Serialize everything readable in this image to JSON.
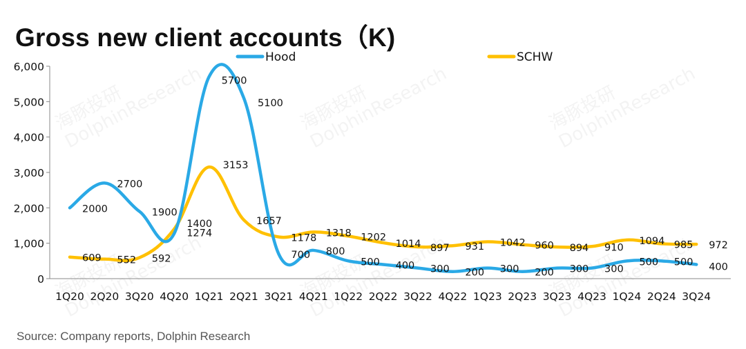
{
  "title": "Gross new client accounts（K)",
  "source": "Source: Company reports, Dolphin Research",
  "watermark": {
    "text_cn": "海豚投研",
    "text_en": "DolphinResearch"
  },
  "colors": {
    "hood": "#2AA9E6",
    "schw": "#FFC000",
    "axis": "#888888"
  },
  "chart_data": {
    "type": "line",
    "title": "Gross new client accounts（K)",
    "categories": [
      "1Q20",
      "2Q20",
      "3Q20",
      "4Q20",
      "1Q21",
      "2Q21",
      "3Q21",
      "4Q21",
      "1Q22",
      "2Q22",
      "3Q22",
      "4Q22",
      "1Q23",
      "2Q23",
      "3Q23",
      "4Q23",
      "1Q24",
      "2Q24",
      "3Q24"
    ],
    "series": [
      {
        "name": "Hood",
        "color": "#2AA9E6",
        "values": [
          2000,
          2700,
          1900,
          1274,
          5700,
          5100,
          700,
          800,
          500,
          400,
          300,
          200,
          300,
          200,
          300,
          300,
          500,
          500,
          400
        ],
        "labels": [
          "2000",
          "2700",
          "1900",
          "1274",
          "5700",
          "5100",
          "700",
          "800",
          "500",
          "400",
          "300",
          "200",
          "300",
          "200",
          "300",
          "300",
          "500",
          "500",
          "400"
        ]
      },
      {
        "name": "SCHW",
        "color": "#FFC000",
        "values": [
          609,
          552,
          592,
          1400,
          3153,
          1657,
          1178,
          1318,
          1202,
          1014,
          897,
          931,
          1042,
          960,
          894,
          910,
          1094,
          985,
          972
        ],
        "labels": [
          "609",
          "552",
          "592",
          "1400",
          "3153",
          "1657",
          "1178",
          "1318",
          "1202",
          "1014",
          "897",
          "931",
          "1042",
          "960",
          "894",
          "910",
          "1094",
          "985",
          "972"
        ]
      }
    ],
    "ylim": [
      0,
      6000
    ],
    "yticks": [
      0,
      1000,
      2000,
      3000,
      4000,
      5000,
      6000
    ],
    "ytick_labels": [
      "0",
      "1,000",
      "2,000",
      "3,000",
      "4,000",
      "5,000",
      "6,000"
    ],
    "grid": false,
    "legend_position": "top"
  }
}
